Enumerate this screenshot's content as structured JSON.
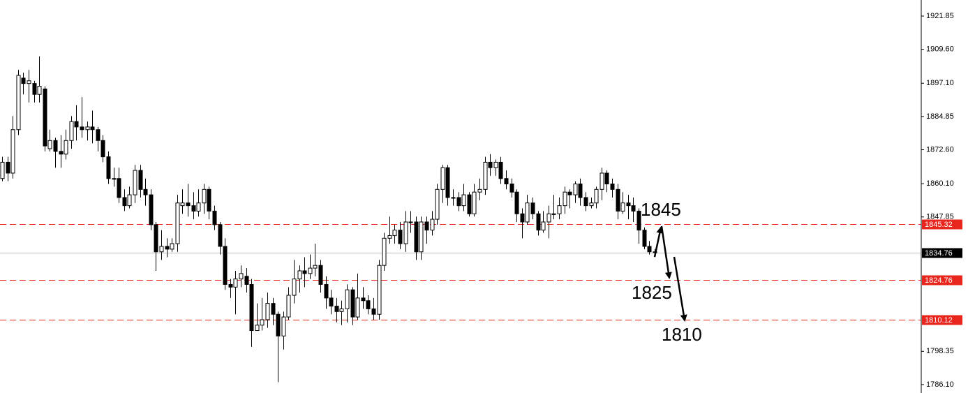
{
  "chart_data": {
    "type": "candlestick",
    "open": [
      1862,
      1868,
      1864,
      1880,
      1899,
      1897,
      1897,
      1893,
      1895,
      1873,
      1876,
      1872,
      1871,
      1876,
      1883,
      1881,
      1880,
      1881,
      1880,
      1876,
      1870,
      1862,
      1862,
      1855,
      1852,
      1856,
      1865,
      1858,
      1856,
      1845,
      1835,
      1837,
      1836,
      1838,
      1852,
      1853,
      1852,
      1850,
      1853,
      1858,
      1850,
      1845,
      1837,
      1823,
      1822,
      1825,
      1826,
      1823,
      1806,
      1808,
      1810,
      1816,
      1812,
      1804,
      1811,
      1819,
      1825,
      1828,
      1827,
      1829,
      1830,
      1823,
      1818,
      1815,
      1813,
      1814,
      1821,
      1811,
      1818,
      1817,
      1814,
      1812,
      1830,
      1840,
      1841,
      1843,
      1838,
      1846,
      1846,
      1835,
      1846,
      1843,
      1847,
      1858,
      1866,
      1855,
      1855,
      1852,
      1856,
      1849,
      1857,
      1858,
      1868,
      1866,
      1868,
      1862,
      1860,
      1857,
      1849,
      1846,
      1853,
      1849,
      1843,
      1846,
      1849,
      1849,
      1852,
      1857,
      1856,
      1860,
      1855,
      1852,
      1853,
      1858,
      1864,
      1860,
      1858,
      1850,
      1853,
      1852,
      1850,
      1843,
      1837,
      1835
    ],
    "high": [
      1870,
      1870,
      1885,
      1902,
      1901,
      1902,
      1898,
      1907,
      1896,
      1880,
      1877,
      1878,
      1880,
      1885,
      1889,
      1892,
      1883,
      1887,
      1881,
      1878,
      1872,
      1866,
      1866,
      1858,
      1859,
      1867,
      1867,
      1862,
      1858,
      1846,
      1843,
      1840,
      1840,
      1856,
      1858,
      1860,
      1857,
      1858,
      1860,
      1859,
      1852,
      1846,
      1840,
      1825,
      1828,
      1830,
      1829,
      1825,
      1816,
      1818,
      1820,
      1818,
      1813,
      1813,
      1822,
      1832,
      1830,
      1833,
      1834,
      1838,
      1832,
      1826,
      1821,
      1818,
      1817,
      1823,
      1822,
      1827,
      1822,
      1819,
      1818,
      1832,
      1842,
      1848,
      1845,
      1846,
      1850,
      1850,
      1848,
      1848,
      1848,
      1850,
      1860,
      1867,
      1867,
      1858,
      1857,
      1860,
      1857,
      1860,
      1862,
      1870,
      1871,
      1869,
      1870,
      1865,
      1862,
      1858,
      1851,
      1856,
      1855,
      1850,
      1850,
      1852,
      1856,
      1855,
      1859,
      1858,
      1861,
      1862,
      1857,
      1855,
      1859,
      1866,
      1865,
      1862,
      1860,
      1857,
      1856,
      1855,
      1851,
      1844,
      1839,
      1836
    ],
    "low": [
      1861,
      1861,
      1862,
      1878,
      1893,
      1890,
      1890,
      1890,
      1872,
      1872,
      1866,
      1866,
      1869,
      1873,
      1876,
      1877,
      1876,
      1875,
      1872,
      1868,
      1860,
      1859,
      1853,
      1850,
      1851,
      1853,
      1855,
      1852,
      1843,
      1828,
      1832,
      1833,
      1835,
      1835,
      1849,
      1848,
      1847,
      1848,
      1849,
      1847,
      1843,
      1834,
      1821,
      1818,
      1812,
      1822,
      1820,
      1800,
      1806,
      1806,
      1807,
      1808,
      1787,
      1799,
      1810,
      1816,
      1820,
      1822,
      1825,
      1826,
      1820,
      1814,
      1812,
      1809,
      1808,
      1809,
      1808,
      1810,
      1814,
      1812,
      1810,
      1810,
      1828,
      1838,
      1838,
      1836,
      1835,
      1842,
      1832,
      1832,
      1838,
      1841,
      1845,
      1853,
      1852,
      1852,
      1850,
      1850,
      1848,
      1848,
      1854,
      1856,
      1863,
      1863,
      1860,
      1858,
      1855,
      1846,
      1840,
      1845,
      1847,
      1841,
      1842,
      1840,
      1847,
      1847,
      1849,
      1851,
      1853,
      1852,
      1850,
      1851,
      1851,
      1854,
      1857,
      1855,
      1847,
      1849,
      1847,
      1846,
      1838,
      1836,
      1834,
      1833
    ],
    "close": [
      1868,
      1864,
      1880,
      1900,
      1897,
      1898,
      1893,
      1896,
      1874,
      1876,
      1872,
      1871,
      1876,
      1883,
      1881,
      1880,
      1881,
      1880,
      1876,
      1870,
      1862,
      1862,
      1855,
      1852,
      1856,
      1865,
      1858,
      1856,
      1845,
      1835,
      1837,
      1836,
      1838,
      1853,
      1853,
      1852,
      1850,
      1853,
      1858,
      1850,
      1845,
      1837,
      1823,
      1822,
      1825,
      1827,
      1823,
      1806,
      1808,
      1810,
      1816,
      1812,
      1804,
      1811,
      1819,
      1825,
      1828,
      1827,
      1829,
      1830,
      1823,
      1818,
      1815,
      1813,
      1814,
      1821,
      1811,
      1818,
      1817,
      1814,
      1812,
      1830,
      1840,
      1841,
      1843,
      1838,
      1846,
      1846,
      1835,
      1846,
      1843,
      1847,
      1858,
      1866,
      1855,
      1855,
      1852,
      1856,
      1849,
      1857,
      1858,
      1868,
      1866,
      1868,
      1862,
      1860,
      1857,
      1849,
      1846,
      1853,
      1849,
      1843,
      1846,
      1849,
      1849,
      1852,
      1857,
      1856,
      1860,
      1855,
      1852,
      1853,
      1858,
      1864,
      1860,
      1858,
      1850,
      1853,
      1852,
      1850,
      1843,
      1837,
      1835,
      1835
    ],
    "up_color": "#ffffff",
    "down_color": "#000000",
    "color": "#000000",
    "ylim": [
      1783.0,
      1927.76
    ],
    "yticks": [
      1921.85,
      {
        "value": 1909.6,
        "label": "1909.60"
      },
      {
        "value": 1897.1,
        "label": "1897.10"
      },
      1884.85,
      {
        "value": 1872.6,
        "label": "1872.60"
      },
      {
        "value": 1860.1,
        "label": "1860.10"
      },
      1847.85,
      1798.35,
      {
        "value": 1786.1,
        "label": "1786.10"
      }
    ],
    "hlines": [
      {
        "value": 1845.32,
        "color": "#e8261e",
        "dashed": true
      },
      {
        "value": 1834.76,
        "color": "#000000",
        "dashed": false
      },
      {
        "value": 1824.76,
        "color": "#e8261e",
        "dashed": true
      },
      {
        "value": 1810.12,
        "color": "#e8261e",
        "dashed": true
      }
    ],
    "annotations": [
      "1845",
      "1825",
      "1810"
    ]
  }
}
